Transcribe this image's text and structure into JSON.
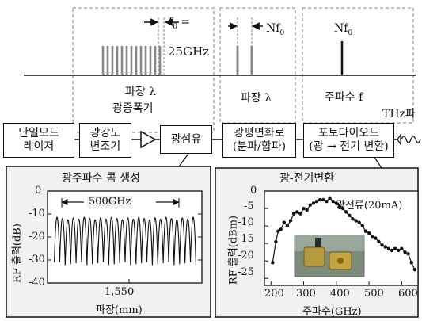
{
  "top": {
    "spectrum1": {
      "f0_line1": "f",
      "f0_sub": "0",
      "f0_line2": " =",
      "f0_value": "25GHz",
      "xlabel": "파장 λ",
      "caption": "광증폭기"
    },
    "spectrum2": {
      "nf_label": "Nf",
      "nf_sub": "0",
      "xlabel": "파장 λ"
    },
    "spectrum3": {
      "nf_label": "Nf",
      "nf_sub": "0",
      "xlabel": "주파수 f"
    }
  },
  "blocks": {
    "laser": {
      "line1": "단일모드",
      "line2": "레이저"
    },
    "modulator": {
      "line1": "광강도",
      "line2": "변조기"
    },
    "fiber": {
      "label": "광섬유"
    },
    "polarization": {
      "line1": "광평면화로",
      "line2": "(분파/합파)"
    },
    "photodiode": {
      "line1": "포토다이오드",
      "line2": "(광 → 전기 변환)"
    },
    "output": {
      "label": "THz파"
    }
  },
  "panel_left": {
    "title": "광주파수 콤 생성",
    "annotation": "500GHz",
    "ylabel": "RF 출력(dB)",
    "yticks": [
      "0",
      "-10",
      "-20",
      "-30",
      "-40"
    ],
    "xtick": "1,550",
    "xlabel": "파장(mm)"
  },
  "panel_right": {
    "title": "광-전기변환",
    "legend": "광전류(20mA)",
    "ylabel": "RF 출력(dBm)",
    "yticks": [
      "0",
      "-5",
      "-10",
      "-15",
      "-20",
      "-25"
    ],
    "xticks": [
      "200",
      "300",
      "400",
      "500",
      "600"
    ],
    "xlabel": "주파수(GHz)"
  },
  "chart_data": [
    {
      "type": "line",
      "title": "광주파수 콤 생성",
      "xlabel": "파장(mm)",
      "ylabel": "RF 출력(dB)",
      "ylim": [
        -40,
        0
      ],
      "x_tick_label": "1,550",
      "annotation": "500GHz",
      "peak_level": -12,
      "trough_level": -31,
      "comb_lines": 26
    },
    {
      "type": "line",
      "title": "광-전기변환",
      "xlabel": "주파수(GHz)",
      "ylabel": "RF 출력(dBm)",
      "xlim": [
        180,
        650
      ],
      "ylim": [
        -27,
        0
      ],
      "series": [
        {
          "name": "광전류(20mA)",
          "x": [
            205,
            215,
            222,
            230,
            240,
            250,
            260,
            270,
            280,
            290,
            300,
            310,
            320,
            330,
            340,
            350,
            360,
            370,
            380,
            390,
            400,
            410,
            420,
            430,
            440,
            450,
            460,
            470,
            480,
            490,
            500,
            510,
            520,
            530,
            540,
            550,
            560,
            570,
            580,
            590,
            600,
            610,
            620,
            630,
            640
          ],
          "y": [
            -20.5,
            -14.5,
            -11.5,
            -11,
            -9,
            -10,
            -8.5,
            -6.5,
            -6,
            -6.5,
            -5,
            -5.5,
            -4,
            -3.5,
            -3,
            -2.5,
            -2.5,
            -3,
            -2,
            -3,
            -3.5,
            -4.5,
            -5,
            -6,
            -7,
            -8,
            -8.5,
            -9,
            -10,
            -11.5,
            -12,
            -13,
            -13.5,
            -14.5,
            -15.5,
            -16,
            -16.5,
            -17,
            -16.5,
            -17,
            -16.5,
            -17.5,
            -18,
            -20.5,
            -22.5
          ]
        }
      ]
    }
  ]
}
